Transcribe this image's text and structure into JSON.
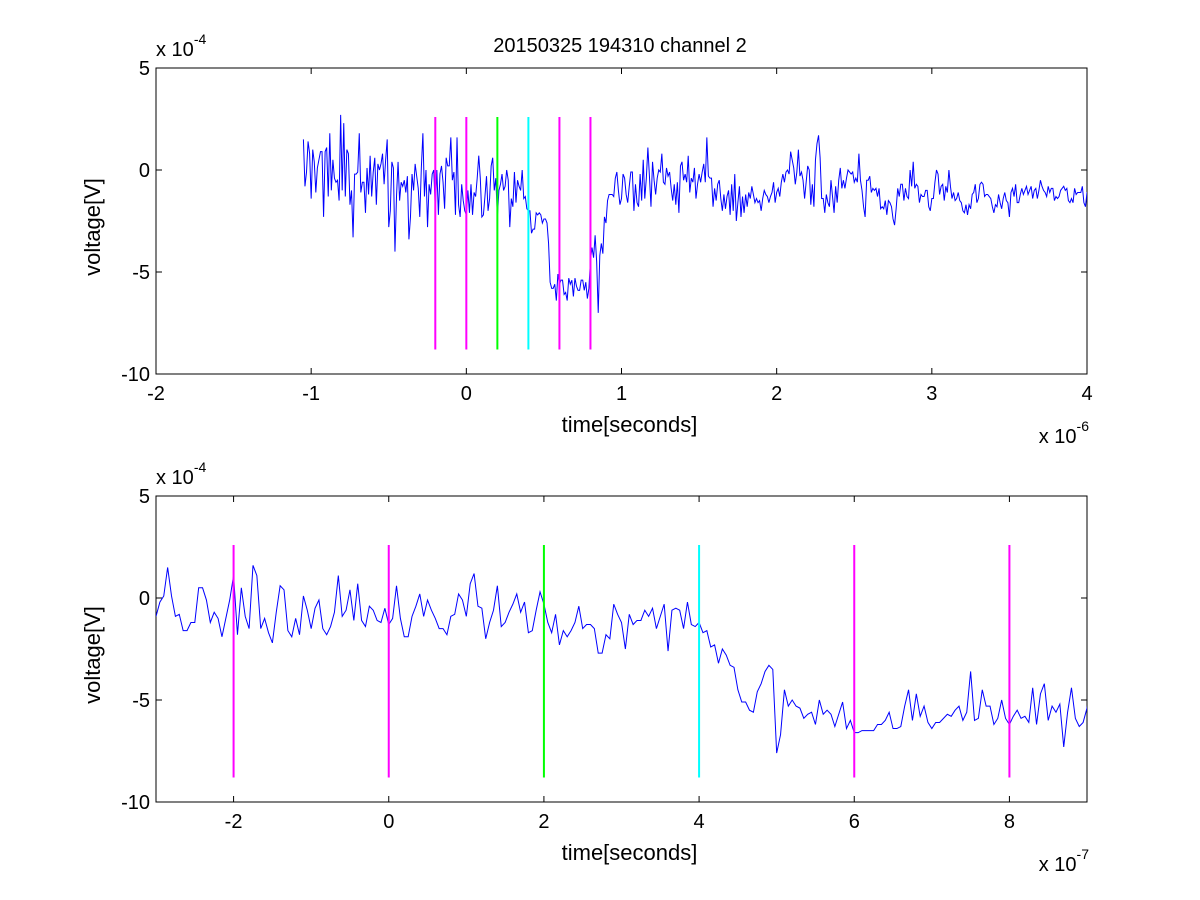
{
  "figure": {
    "title": "20150325 194310 channel 2"
  },
  "chart_data": [
    {
      "type": "line",
      "xlabel": "time[seconds]",
      "ylabel": "voltage[V]",
      "x_multiplier": "x 10",
      "x_exponent": "-6",
      "y_multiplier": "x 10",
      "y_exponent": "-4",
      "xlim": [
        -2,
        4
      ],
      "ylim": [
        -10,
        5
      ],
      "xticks": [
        -2,
        -1,
        0,
        1,
        2,
        3,
        4
      ],
      "yticks": [
        5,
        0,
        -5,
        -10
      ],
      "grid": false,
      "series": [
        {
          "color": "#0000ff",
          "x_start": -1.05,
          "x_step": 0.01,
          "values": [
            1.5,
            -0.8,
            -0.1,
            1.4,
            0.8,
            -1.4,
            1.0,
            0.4,
            -1.1,
            0.1,
            0.5,
            0.9,
            0.9,
            -2.3,
            0.9,
            1.1,
            -1.3,
            1.8,
            -1.0,
            0.5,
            -0.4,
            -0.6,
            -0.5,
            -1.5,
            2.7,
            -1.0,
            2.3,
            -1.3,
            1.0,
            0.8,
            -1.7,
            -1.0,
            -3.3,
            -0.2,
            -0.2,
            -0.1,
            1.8,
            -1.1,
            -0.6,
            -0.6,
            -2.1,
            0.1,
            -1.2,
            0.7,
            -1.3,
            -0.1,
            0.6,
            -1.7,
            0.3,
            -0.0,
            0.3,
            0.8,
            -0.7,
            0.5,
            1.5,
            -2.8,
            -2.0,
            0.4,
            0.1,
            -4.0,
            -1.3,
            0.4,
            -1.5,
            -0.6,
            -0.8,
            -0.5,
            -1.1,
            -0.3,
            -3.4,
            -2.3,
            -0.2,
            -1.0,
            0.3,
            -0.3,
            -0.9,
            -2.3,
            0.1,
            1.8,
            -1.3,
            -0.0,
            -2.8,
            -0.7,
            -1.2,
            -0.2,
            0.0,
            -1.9,
            -0.0,
            -2.2,
            -0.2,
            0.2,
            -0.6,
            -1.9,
            0.6,
            0.2,
            0.2,
            1.6,
            -0.5,
            -0.1,
            -2.2,
            1.6,
            -1.7,
            -2.3,
            -0.7,
            -1.5,
            -2.0,
            -2.2,
            -1.0,
            -2.1,
            -0.7,
            -2.2,
            -1.1,
            -1.3,
            -0.4,
            0.7,
            -0.4,
            -2.3,
            -2.2,
            -1.3,
            -0.3,
            -2.0,
            -1.4,
            0.2,
            0.6,
            -1.0,
            -0.4,
            -2.3,
            -1.0,
            -0.7,
            -0.2,
            -1.0,
            -0.8,
            0.0,
            -0.5,
            -2.8,
            -1.4,
            -1.8,
            -0.1,
            -1.6,
            -0.5,
            -0.8,
            -1.0,
            -0.0,
            -1.4,
            -1.3,
            -1.9,
            -2.0,
            -2.0,
            -3.1,
            -2.9,
            -2.9,
            -2.1,
            -2.2,
            -2.1,
            -2.2,
            -2.6,
            -2.4,
            -2.4,
            -2.6,
            -3.6,
            -5.5,
            -5.8,
            -5.8,
            -5.6,
            -6.4,
            -5.1,
            -5.6,
            -5.4,
            -5.4,
            -6.1,
            -6.0,
            -6.4,
            -5.3,
            -5.6,
            -5.4,
            -6.2,
            -5.3,
            -5.7,
            -5.9,
            -5.9,
            -5.4,
            -5.4,
            -5.9,
            -5.5,
            -6.3,
            -5.8,
            -4.4,
            -3.8,
            -4.3,
            -3.2,
            -4.5,
            -7.0,
            -4.2,
            -3.6,
            -4.1,
            -2.3,
            -2.6,
            -1.5,
            -1.2,
            -1.2,
            -1.2,
            -1.3,
            -0.4,
            -0.1,
            -1.0,
            -1.7,
            -1.4,
            -0.2,
            -0.4,
            -1.2,
            -1.6,
            -0.8,
            -0.1,
            -0.1,
            -2.0,
            -0.7,
            -1.6,
            -1.8,
            -0.2,
            -1.5,
            0.5,
            -1.4,
            -0.4,
            1.1,
            -0.3,
            -1.8,
            0.4,
            -0.5,
            -1.2,
            -0.4,
            0.0,
            -0.1,
            0.8,
            -0.6,
            -0.7,
            0.1,
            -0.3,
            -0.1,
            -0.9,
            -1.5,
            -0.7,
            -1.7,
            -0.6,
            -2.1,
            0.2,
            0.4,
            -0.5,
            -0.2,
            -0.6,
            0.7,
            -1.1,
            -0.4,
            -0.6,
            0.1,
            -1.4,
            -0.7,
            -0.2,
            -0.6,
            -0.1,
            0.3,
            -0.6,
            1.6,
            -0.3,
            -0.4,
            -0.4,
            -1.8,
            -0.9,
            -1.5,
            -0.7,
            -0.5,
            -1.4,
            -2.0,
            -1.2,
            -1.9,
            -1.3,
            -1.0,
            -2.2,
            -0.7,
            -2.0,
            -0.2,
            -2.5,
            -1.6,
            -0.8,
            -2.3,
            -1.3,
            -2.1,
            -1.2,
            -1.8,
            -1.1,
            -1.4,
            -0.8,
            -1.2,
            -1.6,
            -1.4,
            -1.6,
            -1.5,
            -2.0,
            -1.4,
            -1.0,
            -1.2,
            -1.3,
            -1.6,
            -1.3,
            -1.1,
            -0.6,
            -1.6,
            -1.1,
            -0.9,
            -1.3,
            -0.6,
            -0.2,
            -0.6,
            -0.1,
            0.0,
            -0.2,
            0.9,
            0.5,
            0.1,
            -0.7,
            -0.1,
            1.0,
            -0.3,
            -0.1,
            -0.5,
            -1.4,
            -0.6,
            0.2,
            -0.0,
            -1.7,
            -0.7,
            -1.8,
            0.5,
            1.3,
            1.7,
            0.6,
            -1.4,
            -1.4,
            -2.1,
            -1.2,
            -1.6,
            -1.8,
            -0.5,
            -1.3,
            -2.1,
            -0.8,
            -1.6,
            -0.5,
            0.1,
            -0.9,
            -0.5,
            -0.9,
            -0.4,
            0.0,
            -0.1,
            -0.2,
            -0.1,
            -0.6,
            -0.4,
            -0.6,
            0.8,
            -0.5,
            -1.0,
            -1.8,
            -2.3,
            -0.5,
            -0.5,
            -0.3,
            -1.1,
            -0.9,
            -1.0,
            -0.9,
            -1.3,
            -0.9,
            -1.9,
            -1.8,
            -1.9,
            -1.5,
            -2.2,
            -1.5,
            -1.6,
            -1.8,
            -2.4,
            -2.7,
            -1.9,
            -0.9,
            -1.3,
            -0.7,
            -0.7,
            -1.5,
            -0.9,
            -1.3,
            -1.4,
            0.0,
            -0.8,
            0.4,
            -0.9,
            -0.7,
            -0.8,
            -1.6,
            -1.2,
            -1.3,
            -1.3,
            -1.0,
            -1.0,
            -1.8,
            -2.0,
            -1.4,
            -1.4,
            -0.6,
            -0.0,
            -0.2,
            -1.2,
            -0.8,
            -0.7,
            -1.5,
            -0.8,
            -1.1,
            0.0,
            -0.8,
            -1.4,
            -1.1,
            -1.5,
            -1.4,
            -1.1,
            -1.5,
            -1.6,
            -2.0,
            -2.1,
            -1.7,
            -2.2,
            -1.7,
            -1.9,
            -1.2,
            -1.1,
            -0.7,
            -1.6,
            -1.4,
            -0.7,
            -0.6,
            -0.7,
            -1.3,
            -1.2,
            -1.2,
            -1.3,
            -1.4,
            -1.8,
            -2.1,
            -1.7,
            -1.8,
            -1.2,
            -1.6,
            -1.9,
            -1.4,
            -1.1,
            -1.5,
            -1.6,
            -2.3,
            -1.1,
            -0.9,
            -1.3,
            -0.7,
            -1.6,
            -1.6,
            -1.2,
            -0.9,
            -1.2,
            -1.0,
            -0.8,
            -1.2,
            -1.0,
            -0.8,
            -1.4,
            -1.0,
            -0.9,
            -1.4,
            -1.0,
            -0.5,
            -0.8,
            -1.0,
            -1.1,
            -1.3,
            -0.8,
            -1.1,
            -0.9,
            -0.9,
            -1.5,
            -1.3,
            -1.4,
            -1.3,
            -1.0,
            -0.9,
            -0.8,
            -1.0,
            -0.9,
            -1.5,
            -1.6,
            -1.4,
            -1.6,
            -0.9,
            -1.2,
            -1.1,
            -1.1,
            -1.1,
            -0.8,
            -1.6,
            -1.8,
            -1.1,
            -1.1,
            -1.2,
            -1.3,
            -1.1,
            -1.1,
            -0.8,
            -1.0,
            -0.8,
            -1.0,
            -1.2,
            -1.2,
            -1.8,
            -1.4,
            -1.3,
            -1.5,
            -1.2,
            -1.4,
            -1.3,
            -1.5,
            -1.2,
            -1.2,
            -1.3,
            -1.5,
            -1.8,
            -1.2,
            -1.4,
            -1.4,
            -0.9,
            -1.3,
            -1.1,
            -1.6,
            -1.3,
            -1.1,
            -1.3,
            -1.3,
            -1.3,
            -1.0,
            -1.1,
            -1.4,
            -1.5,
            -1.4,
            -1.2,
            -1.3,
            -1.0,
            -1.2,
            -1.2,
            -1.4,
            -1.4,
            -1.2,
            -1.3,
            -1.3,
            -1.4,
            -1.5,
            -1.6,
            -1.6,
            -1.5,
            -1.6,
            -1.6
          ]
        }
      ],
      "markers": [
        {
          "x": -0.2,
          "color": "#ff00ff"
        },
        {
          "x": 0.0,
          "color": "#ff00ff"
        },
        {
          "x": 0.2,
          "color": "#00ff00"
        },
        {
          "x": 0.4,
          "color": "#00ffff"
        },
        {
          "x": 0.6,
          "color": "#ff00ff"
        },
        {
          "x": 0.8,
          "color": "#ff00ff"
        }
      ],
      "marker_ylim": [
        -8.8,
        2.6
      ]
    },
    {
      "type": "line",
      "xlabel": "time[seconds]",
      "ylabel": "voltage[V]",
      "x_multiplier": "x 10",
      "x_exponent": "-7",
      "y_multiplier": "x 10",
      "y_exponent": "-4",
      "xlim": [
        -3,
        9
      ],
      "ylim": [
        -10,
        5
      ],
      "xticks": [
        -2,
        0,
        2,
        4,
        6,
        8
      ],
      "yticks": [
        5,
        0,
        -5,
        -10
      ],
      "grid": false,
      "series": [
        {
          "color": "#0000ff",
          "x_start": -3.0,
          "x_step": 0.05,
          "values": [
            -0.9,
            -0.2,
            0.1,
            1.5,
            0.1,
            -0.9,
            -0.8,
            -1.6,
            -1.6,
            -1.2,
            -1.2,
            0.5,
            0.5,
            -0.1,
            -1.2,
            -0.7,
            -1.0,
            -1.9,
            -1.0,
            -0.1,
            1.1,
            -1.8,
            0.5,
            -0.9,
            -1.5,
            1.6,
            1.1,
            -1.5,
            -1.0,
            -1.7,
            -2.2,
            -0.7,
            0.6,
            0.4,
            -1.6,
            -1.9,
            -1.0,
            -1.8,
            0.1,
            -0.6,
            -1.5,
            -0.5,
            -0.1,
            -1.5,
            -1.8,
            -1.4,
            -0.7,
            1.1,
            -0.9,
            -0.6,
            0.4,
            -1.1,
            0.7,
            -1.1,
            -1.4,
            -0.4,
            -0.6,
            -1.1,
            -1.2,
            -0.5,
            -1.3,
            -1.0,
            0.6,
            -1.0,
            -1.9,
            -1.9,
            -0.9,
            -0.4,
            0.2,
            -0.9,
            -0.1,
            -0.6,
            -1.0,
            -1.5,
            -1.5,
            -1.8,
            -0.9,
            -0.8,
            0.2,
            -0.1,
            -0.9,
            0.7,
            1.2,
            -0.4,
            -0.5,
            -2.0,
            -1.2,
            -0.6,
            0.6,
            -1.4,
            -1.2,
            -0.7,
            -0.3,
            0.2,
            -0.7,
            -0.2,
            -1.7,
            -1.6,
            -0.6,
            0.3,
            -0.3,
            -1.2,
            -1.7,
            -0.8,
            -2.3,
            -1.6,
            -1.9,
            -1.6,
            -1.2,
            -0.4,
            -1.5,
            -1.3,
            -1.3,
            -1.5,
            -2.7,
            -2.7,
            -1.8,
            -2.0,
            -0.3,
            -0.8,
            -1.2,
            -2.5,
            -0.8,
            -1.3,
            -1.1,
            -1.1,
            -0.6,
            -0.9,
            -0.5,
            -1.5,
            -0.9,
            -0.3,
            -2.6,
            -0.6,
            -0.5,
            -0.6,
            -1.5,
            -0.2,
            -1.3,
            -1.4,
            -1.2,
            -1.7,
            -1.6,
            -2.4,
            -2.3,
            -3.2,
            -2.5,
            -2.8,
            -3.3,
            -3.4,
            -4.5,
            -5.1,
            -5.1,
            -5.5,
            -5.6,
            -4.6,
            -4.2,
            -3.6,
            -3.3,
            -3.5,
            -7.6,
            -6.7,
            -4.5,
            -5.3,
            -5.0,
            -5.3,
            -5.4,
            -5.9,
            -5.7,
            -5.6,
            -6.2,
            -5.0,
            -5.7,
            -5.5,
            -5.7,
            -6.3,
            -5.7,
            -5.1,
            -6.4,
            -6.0,
            -6.6,
            -6.6,
            -6.5,
            -6.5,
            -6.5,
            -6.5,
            -6.2,
            -6.2,
            -6.0,
            -5.6,
            -6.4,
            -6.4,
            -6.3,
            -5.3,
            -4.5,
            -6.0,
            -4.7,
            -5.8,
            -5.3,
            -6.1,
            -6.4,
            -6.1,
            -6.1,
            -5.9,
            -5.7,
            -5.8,
            -5.5,
            -5.3,
            -6.0,
            -5.6,
            -3.6,
            -6.0,
            -5.9,
            -4.5,
            -5.3,
            -5.3,
            -6.2,
            -5.9,
            -5.0,
            -5.9,
            -6.2,
            -5.8,
            -5.5,
            -5.9,
            -5.8,
            -6.1,
            -4.4,
            -6.2,
            -4.7,
            -4.2,
            -6.0,
            -5.3,
            -5.6,
            -5.2,
            -7.3,
            -5.6,
            -4.4,
            -5.9,
            -6.3,
            -6.1,
            -5.4,
            -4.2,
            -6.5,
            -5.2,
            -3.6,
            -4.6,
            -5.0,
            -3.8,
            -2.5,
            -2.2,
            -2.6,
            -3.0,
            -3.2,
            -2.5,
            -2.4,
            -1.2,
            -1.5,
            -2.5,
            -1.9,
            0.2,
            -0.7,
            -1.4,
            -1.8,
            -2.2,
            -1.7,
            -1.8,
            -1.1,
            -1.2,
            -1.2,
            -0.9,
            -1.5,
            -0.3,
            0.2,
            -0.9,
            -1.3,
            -1.8,
            -0.5,
            -0.5,
            -0.4,
            -0.6,
            -0.6,
            -0.6,
            -0.6,
            -0.7,
            -1.8,
            -1.7,
            -2.5,
            -0.9,
            -1.5,
            -0.4,
            -0.8,
            -0.8,
            -0.6,
            -0.7,
            -1.1,
            0.3,
            -0.3,
            -0.7,
            -0.8,
            -1.1,
            -1.4,
            -1.0,
            0.2,
            -1.1,
            -1.7,
            -1.6,
            -0.6,
            -0.1,
            -0.4,
            0.5,
            -0.7,
            0.7,
            -0.6,
            -0.2,
            0.8,
            -1.1,
            0.8,
            -0.8,
            0.4,
            0.6,
            -0.1,
            -1.9,
            -1.3,
            -0.9,
            0.9,
            -0.4,
            -1.0,
            -0.1,
            0.6,
            -0.4,
            -0.7,
            -1.0,
            -0.4,
            -1.4,
            -0.6,
            -1.1,
            -2.2,
            -1.7,
            -0.2,
            -2.5,
            -2.4,
            -2.8,
            -1.8,
            -2.2,
            -2.1,
            -2.0,
            -0.4,
            -0.2,
            -0.8,
            -1.3,
            -1.5,
            -1.5,
            -1.6,
            -1.2,
            -1.5,
            -1.8,
            -1.1
          ]
        }
      ],
      "markers": [
        {
          "x": -2,
          "color": "#ff00ff"
        },
        {
          "x": 0,
          "color": "#ff00ff"
        },
        {
          "x": 2,
          "color": "#00ff00"
        },
        {
          "x": 4,
          "color": "#00ffff"
        },
        {
          "x": 6,
          "color": "#ff00ff"
        },
        {
          "x": 8,
          "color": "#ff00ff"
        }
      ],
      "marker_ylim": [
        -8.8,
        2.6
      ]
    }
  ]
}
